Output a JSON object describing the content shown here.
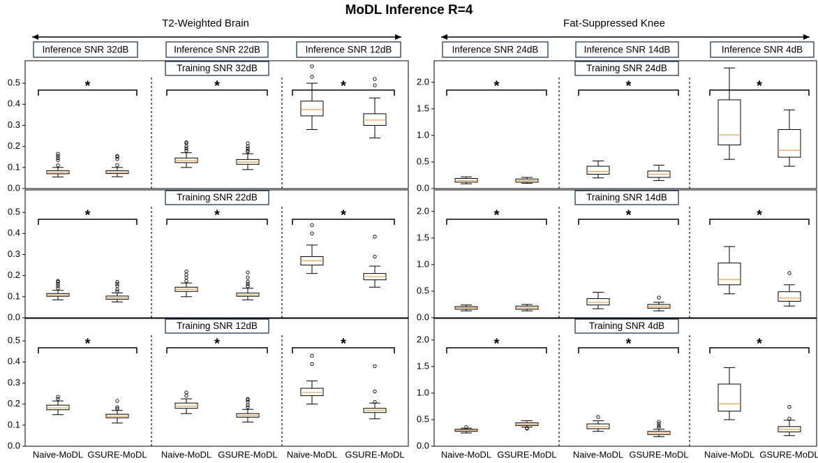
{
  "title": "MoDL Inference R=4",
  "groups": [
    {
      "label": "T2-Weighted Brain"
    },
    {
      "label": "Fat-Suppressed Knee"
    }
  ],
  "colors": {
    "median": "#ff9f40",
    "box": "#000000",
    "frame": "#1f3864",
    "axis": "#000000"
  },
  "chart_data": {
    "type": "box",
    "categories": [
      "Naive-MoDL",
      "GSURE-MoDL"
    ],
    "significance_mark": "*",
    "panels": [
      {
        "name": "T2-Weighted Brain",
        "yticks": [
          0.0,
          0.1,
          0.2,
          0.3,
          0.4,
          0.5
        ],
        "ylim": [
          0,
          0.58
        ],
        "inference_labels": [
          "Inference SNR 32dB",
          "Inference SNR 22dB",
          "Inference SNR 12dB"
        ],
        "rows": [
          {
            "training_label": "Training SNR 32dB",
            "columns": [
              {
                "boxes": [
                  {
                    "whislo": 0.055,
                    "q1": 0.07,
                    "med": 0.077,
                    "q3": 0.085,
                    "whishi": 0.1,
                    "fliers": [
                      0.11,
                      0.135,
                      0.145,
                      0.155,
                      0.165
                    ]
                  },
                  {
                    "whislo": 0.056,
                    "q1": 0.071,
                    "med": 0.078,
                    "q3": 0.085,
                    "whishi": 0.1,
                    "fliers": [
                      0.11,
                      0.14,
                      0.15,
                      0.155
                    ]
                  }
                ]
              },
              {
                "boxes": [
                  {
                    "whislo": 0.1,
                    "q1": 0.123,
                    "med": 0.133,
                    "q3": 0.145,
                    "whishi": 0.17,
                    "fliers": [
                      0.18,
                      0.19,
                      0.2,
                      0.215,
                      0.22
                    ]
                  },
                  {
                    "whislo": 0.09,
                    "q1": 0.115,
                    "med": 0.126,
                    "q3": 0.138,
                    "whishi": 0.165,
                    "fliers": [
                      0.175,
                      0.18,
                      0.19,
                      0.2,
                      0.215
                    ]
                  }
                ]
              },
              {
                "boxes": [
                  {
                    "whislo": 0.28,
                    "q1": 0.345,
                    "med": 0.375,
                    "q3": 0.415,
                    "whishi": 0.5,
                    "fliers": [
                      0.53,
                      0.58
                    ]
                  },
                  {
                    "whislo": 0.24,
                    "q1": 0.3,
                    "med": 0.325,
                    "q3": 0.355,
                    "whishi": 0.43,
                    "fliers": [
                      0.49,
                      0.52
                    ]
                  }
                ]
              }
            ]
          },
          {
            "training_label": "Training SNR 22dB",
            "columns": [
              {
                "boxes": [
                  {
                    "whislo": 0.085,
                    "q1": 0.102,
                    "med": 0.108,
                    "q3": 0.115,
                    "whishi": 0.13,
                    "fliers": [
                      0.14,
                      0.15,
                      0.16,
                      0.17,
                      0.175
                    ]
                  },
                  {
                    "whislo": 0.075,
                    "q1": 0.088,
                    "med": 0.095,
                    "q3": 0.103,
                    "whishi": 0.118,
                    "fliers": [
                      0.125,
                      0.135,
                      0.15,
                      0.16,
                      0.17
                    ]
                  }
                ]
              },
              {
                "boxes": [
                  {
                    "whislo": 0.1,
                    "q1": 0.125,
                    "med": 0.135,
                    "q3": 0.145,
                    "whishi": 0.165,
                    "fliers": [
                      0.175,
                      0.19,
                      0.205,
                      0.22
                    ]
                  },
                  {
                    "whislo": 0.085,
                    "q1": 0.102,
                    "med": 0.108,
                    "q3": 0.117,
                    "whishi": 0.14,
                    "fliers": [
                      0.15,
                      0.16,
                      0.17,
                      0.19,
                      0.215
                    ]
                  }
                ]
              },
              {
                "boxes": [
                  {
                    "whislo": 0.21,
                    "q1": 0.25,
                    "med": 0.27,
                    "q3": 0.29,
                    "whishi": 0.345,
                    "fliers": [
                      0.4,
                      0.44
                    ]
                  },
                  {
                    "whislo": 0.145,
                    "q1": 0.18,
                    "med": 0.195,
                    "q3": 0.21,
                    "whishi": 0.245,
                    "fliers": [
                      0.29,
                      0.385
                    ]
                  }
                ]
              }
            ]
          },
          {
            "training_label": "Training SNR 12dB",
            "columns": [
              {
                "boxes": [
                  {
                    "whislo": 0.15,
                    "q1": 0.173,
                    "med": 0.182,
                    "q3": 0.195,
                    "whishi": 0.215,
                    "fliers": [
                      0.225,
                      0.235
                    ]
                  },
                  {
                    "whislo": 0.11,
                    "q1": 0.135,
                    "med": 0.142,
                    "q3": 0.152,
                    "whishi": 0.17,
                    "fliers": [
                      0.178,
                      0.185,
                      0.215
                    ]
                  }
                ]
              },
              {
                "boxes": [
                  {
                    "whislo": 0.155,
                    "q1": 0.18,
                    "med": 0.19,
                    "q3": 0.205,
                    "whishi": 0.225,
                    "fliers": [
                      0.24,
                      0.255
                    ]
                  },
                  {
                    "whislo": 0.115,
                    "q1": 0.138,
                    "med": 0.145,
                    "q3": 0.155,
                    "whishi": 0.175,
                    "fliers": [
                      0.185,
                      0.195,
                      0.21,
                      0.22,
                      0.225
                    ]
                  }
                ]
              },
              {
                "boxes": [
                  {
                    "whislo": 0.2,
                    "q1": 0.24,
                    "med": 0.255,
                    "q3": 0.275,
                    "whishi": 0.31,
                    "fliers": [
                      0.39,
                      0.43
                    ]
                  },
                  {
                    "whislo": 0.13,
                    "q1": 0.16,
                    "med": 0.17,
                    "q3": 0.18,
                    "whishi": 0.205,
                    "fliers": [
                      0.21,
                      0.26,
                      0.38
                    ]
                  }
                ]
              }
            ]
          }
        ]
      },
      {
        "name": "Fat-Suppressed Knee",
        "yticks": [
          0.0,
          0.5,
          1.0,
          1.5,
          2.0
        ],
        "ylim": [
          0,
          2.3
        ],
        "inference_labels": [
          "Inference SNR 24dB",
          "Inference SNR 14dB",
          "Inference SNR 4dB"
        ],
        "rows": [
          {
            "training_label": "Training SNR 24dB",
            "columns": [
              {
                "boxes": [
                  {
                    "whislo": 0.09,
                    "q1": 0.12,
                    "med": 0.15,
                    "q3": 0.19,
                    "whishi": 0.22,
                    "fliers": []
                  },
                  {
                    "whislo": 0.1,
                    "q1": 0.12,
                    "med": 0.15,
                    "q3": 0.18,
                    "whishi": 0.21,
                    "fliers": []
                  }
                ]
              },
              {
                "boxes": [
                  {
                    "whislo": 0.2,
                    "q1": 0.27,
                    "med": 0.32,
                    "q3": 0.42,
                    "whishi": 0.52,
                    "fliers": []
                  },
                  {
                    "whislo": 0.15,
                    "q1": 0.21,
                    "med": 0.27,
                    "q3": 0.33,
                    "whishi": 0.44,
                    "fliers": []
                  }
                ]
              },
              {
                "boxes": [
                  {
                    "whislo": 0.55,
                    "q1": 0.82,
                    "med": 1.01,
                    "q3": 1.67,
                    "whishi": 2.27,
                    "fliers": []
                  },
                  {
                    "whislo": 0.42,
                    "q1": 0.59,
                    "med": 0.72,
                    "q3": 1.11,
                    "whishi": 1.48,
                    "fliers": []
                  }
                ]
              }
            ]
          },
          {
            "training_label": "Training SNR 14dB",
            "columns": [
              {
                "boxes": [
                  {
                    "whislo": 0.13,
                    "q1": 0.16,
                    "med": 0.19,
                    "q3": 0.21,
                    "whishi": 0.24,
                    "fliers": []
                  },
                  {
                    "whislo": 0.13,
                    "q1": 0.16,
                    "med": 0.19,
                    "q3": 0.22,
                    "whishi": 0.25,
                    "fliers": []
                  }
                ]
              },
              {
                "boxes": [
                  {
                    "whislo": 0.17,
                    "q1": 0.24,
                    "med": 0.29,
                    "q3": 0.36,
                    "whishi": 0.48,
                    "fliers": []
                  },
                  {
                    "whislo": 0.13,
                    "q1": 0.18,
                    "med": 0.21,
                    "q3": 0.25,
                    "whishi": 0.29,
                    "fliers": [
                      0.38
                    ]
                  }
                ]
              },
              {
                "boxes": [
                  {
                    "whislo": 0.45,
                    "q1": 0.62,
                    "med": 0.72,
                    "q3": 1.03,
                    "whishi": 1.34,
                    "fliers": []
                  },
                  {
                    "whislo": 0.22,
                    "q1": 0.31,
                    "med": 0.37,
                    "q3": 0.49,
                    "whishi": 0.62,
                    "fliers": [
                      0.84
                    ]
                  }
                ]
              }
            ]
          },
          {
            "training_label": "Training SNR 4dB",
            "columns": [
              {
                "boxes": [
                  {
                    "whislo": 0.25,
                    "q1": 0.28,
                    "med": 0.3,
                    "q3": 0.32,
                    "whishi": 0.34,
                    "fliers": [
                      0.36
                    ]
                  },
                  {
                    "whislo": 0.36,
                    "q1": 0.39,
                    "med": 0.41,
                    "q3": 0.44,
                    "whishi": 0.48,
                    "fliers": [
                      0.33,
                      0.34
                    ]
                  }
                ]
              },
              {
                "boxes": [
                  {
                    "whislo": 0.28,
                    "q1": 0.33,
                    "med": 0.37,
                    "q3": 0.42,
                    "whishi": 0.48,
                    "fliers": [
                      0.55
                    ]
                  },
                  {
                    "whislo": 0.18,
                    "q1": 0.22,
                    "med": 0.25,
                    "q3": 0.28,
                    "whishi": 0.32,
                    "fliers": [
                      0.35,
                      0.38,
                      0.42,
                      0.46
                    ]
                  }
                ]
              },
              {
                "boxes": [
                  {
                    "whislo": 0.5,
                    "q1": 0.66,
                    "med": 0.8,
                    "q3": 1.17,
                    "whishi": 1.48,
                    "fliers": []
                  },
                  {
                    "whislo": 0.2,
                    "q1": 0.27,
                    "med": 0.32,
                    "q3": 0.37,
                    "whishi": 0.49,
                    "fliers": [
                      0.52,
                      0.74
                    ]
                  }
                ]
              }
            ]
          }
        ]
      }
    ]
  }
}
